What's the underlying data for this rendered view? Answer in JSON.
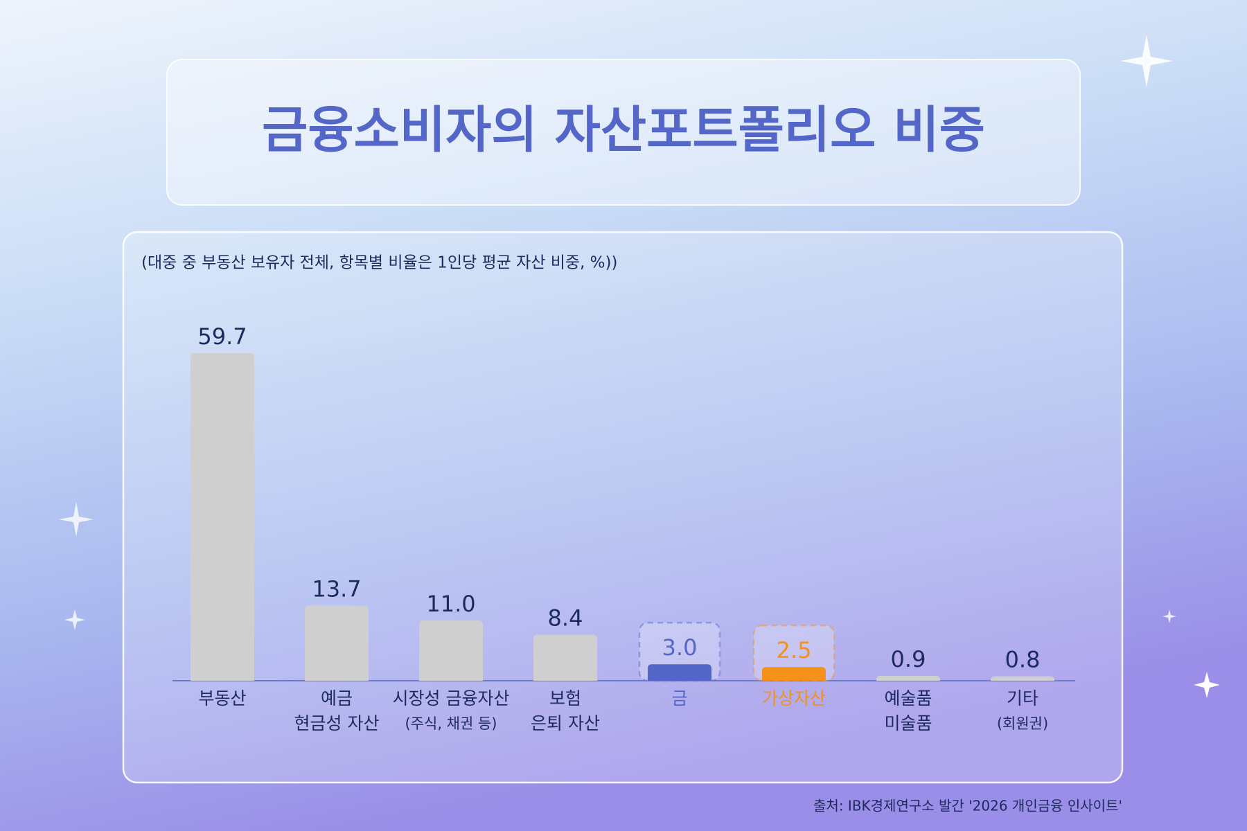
{
  "chart_data": {
    "type": "bar",
    "title": "금융소비자의 자산포트폴리오 비중",
    "subtitle": "(대중 중 부동산 보유자 전체, 항목별 비율은 1인당 평균 자산 비중, %))",
    "categories": [
      [
        "부동산"
      ],
      [
        "예금",
        "현금성 자산"
      ],
      [
        "시장성 금융자산",
        "(주식, 채권 등)"
      ],
      [
        "보험",
        "은퇴 자산"
      ],
      [
        "금"
      ],
      [
        "가상자산"
      ],
      [
        "예술품",
        "미술품"
      ],
      [
        "기타",
        "(회원권)"
      ]
    ],
    "values": [
      59.7,
      13.7,
      11.0,
      8.4,
      3.0,
      2.5,
      0.9,
      0.8
    ],
    "value_labels": [
      "59.7",
      "13.7",
      "11.0",
      "8.4",
      "3.0",
      "2.5",
      "0.9",
      "0.8"
    ],
    "colors": [
      "#cfcfcf",
      "#cfcfcf",
      "#cfcfcf",
      "#cfcfcf",
      "#5467c8",
      "#f5901a",
      "#cfcfcf",
      "#cfcfcf"
    ],
    "label_colors": [
      "#1c2a5e",
      "#1c2a5e",
      "#1c2a5e",
      "#1c2a5e",
      "#5467c8",
      "#f5901a",
      "#1c2a5e",
      "#1c2a5e"
    ],
    "source": "출처: IBK경제연구소 발간 '2026 개인금융 인사이트'"
  }
}
